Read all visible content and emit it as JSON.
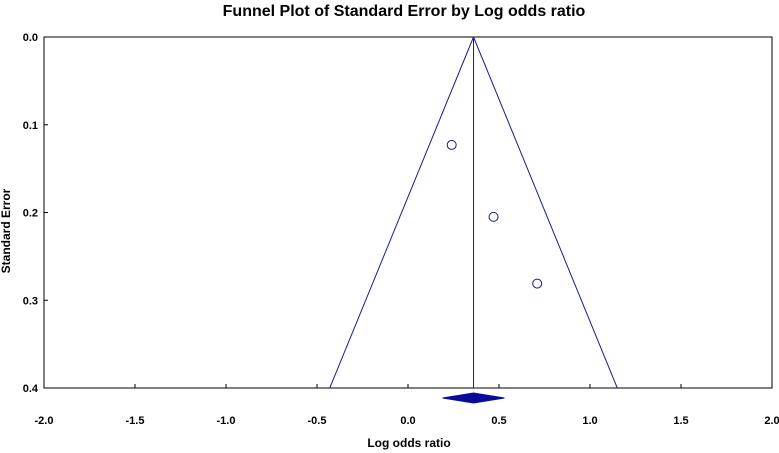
{
  "chart_data": {
    "type": "scatter",
    "title": "Funnel Plot of Standard Error by Log odds ratio",
    "xlabel": "Log odds ratio",
    "ylabel": "Standard Error",
    "xlim": [
      -2.0,
      2.0
    ],
    "ylim": [
      0.0,
      0.4
    ],
    "y_inverted": true,
    "x_ticks": [
      "-2.0",
      "-1.5",
      "-1.0",
      "-0.5",
      "0.0",
      "0.5",
      "1.0",
      "1.5",
      "2.0"
    ],
    "y_ticks": [
      "0.0",
      "0.1",
      "0.2",
      "0.3",
      "0.4"
    ],
    "points": [
      {
        "x": 0.24,
        "y": 0.123
      },
      {
        "x": 0.47,
        "y": 0.205
      },
      {
        "x": 0.71,
        "y": 0.281
      }
    ],
    "pooled_effect": 0.36,
    "funnel_bottom": [
      -0.43,
      1.15
    ],
    "summary_diamond": {
      "center": 0.36,
      "lower": 0.19,
      "upper": 0.53
    },
    "grid": false,
    "colors": {
      "marks": "#1a1a8c",
      "diamond": "#0a0a9a",
      "frame": "#000000"
    }
  }
}
